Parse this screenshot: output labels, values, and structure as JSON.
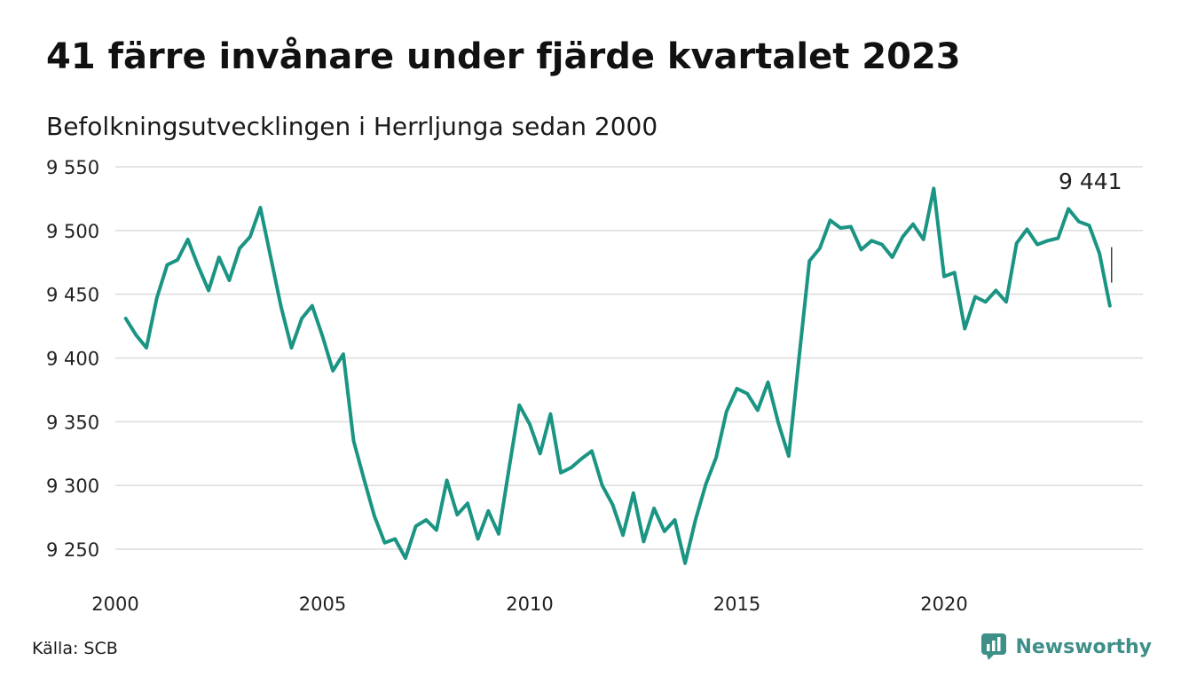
{
  "header": {
    "title": "41 färre invånare under fjärde kvartalet 2023",
    "subtitle": "Befolkningsutvecklingen i Herrljunga sedan 2000"
  },
  "footer": {
    "source": "Källa: SCB",
    "brand": "Newsworthy",
    "brand_icon": "bar-chart-icon"
  },
  "colors": {
    "line": "#1a9483",
    "grid": "#dcdcdc",
    "brand": "#3f8f89"
  },
  "chart_data": {
    "type": "line",
    "title": "41 färre invånare under fjärde kvartalet 2023",
    "subtitle": "Befolkningsutvecklingen i Herrljunga sedan 2000",
    "xlabel": "",
    "ylabel": "",
    "grid": true,
    "xlim": [
      2000,
      2024.25
    ],
    "ylim": [
      9230,
      9560
    ],
    "y_ticks": [
      9250,
      9300,
      9350,
      9400,
      9450,
      9500,
      9550
    ],
    "y_tick_labels": [
      "9 250",
      "9 300",
      "9 350",
      "9 400",
      "9 450",
      "9 500",
      "9 550"
    ],
    "x_ticks": [
      2000,
      2005,
      2010,
      2015,
      2020
    ],
    "x_tick_labels": [
      "2000",
      "2005",
      "2010",
      "2015",
      "2020"
    ],
    "last_value_label": "9 441",
    "series": [
      {
        "x": [
          2000.25,
          2000.5,
          2000.75,
          2001,
          2001.25,
          2001.5,
          2001.75,
          2002,
          2002.25,
          2002.5,
          2002.75,
          2003,
          2003.25,
          2003.5,
          2003.75,
          2004,
          2004.25,
          2004.5,
          2004.75,
          2005,
          2005.25,
          2005.5,
          2005.75,
          2006,
          2006.25,
          2006.5,
          2006.75,
          2007,
          2007.25,
          2007.5,
          2007.75,
          2008,
          2008.25,
          2008.5,
          2008.75,
          2009,
          2009.25,
          2009.5,
          2009.75,
          2010,
          2010.25,
          2010.5,
          2010.75,
          2011,
          2011.25,
          2011.5,
          2011.75,
          2012,
          2012.25,
          2012.5,
          2012.75,
          2013,
          2013.25,
          2013.5,
          2013.75,
          2014,
          2014.25,
          2014.5,
          2014.75,
          2015,
          2015.25,
          2015.5,
          2015.75,
          2016,
          2016.25,
          2016.5,
          2016.75,
          2017,
          2017.25,
          2017.5,
          2017.75,
          2018,
          2018.25,
          2018.5,
          2018.75,
          2019,
          2019.25,
          2019.5,
          2019.75,
          2020,
          2020.25,
          2020.5,
          2020.75,
          2021,
          2021.25,
          2021.5,
          2021.75,
          2022,
          2022.25,
          2022.5,
          2022.75,
          2023,
          2023.25,
          2023.5,
          2023.75,
          2024
        ],
        "values": [
          9431,
          9418,
          9408,
          9447,
          9473,
          9477,
          9493,
          9472,
          9453,
          9479,
          9461,
          9486,
          9495,
          9518,
          9479,
          9440,
          9408,
          9431,
          9441,
          9417,
          9390,
          9403,
          9335,
          9305,
          9276,
          9255,
          9258,
          9243,
          9268,
          9273,
          9265,
          9304,
          9277,
          9286,
          9258,
          9280,
          9262,
          9313,
          9363,
          9348,
          9325,
          9356,
          9310,
          9314,
          9321,
          9327,
          9300,
          9285,
          9261,
          9294,
          9256,
          9282,
          9264,
          9273,
          9239,
          9273,
          9301,
          9322,
          9358,
          9376,
          9372,
          9359,
          9381,
          9349,
          9323,
          9400,
          9476,
          9486,
          9508,
          9502,
          9503,
          9485,
          9492,
          9489,
          9479,
          9495,
          9505,
          9493,
          9533,
          9464,
          9467,
          9423,
          9448,
          9444,
          9453,
          9444,
          9490,
          9501,
          9489,
          9492,
          9494,
          9517,
          9507,
          9504,
          9482,
          9441
        ]
      }
    ]
  }
}
